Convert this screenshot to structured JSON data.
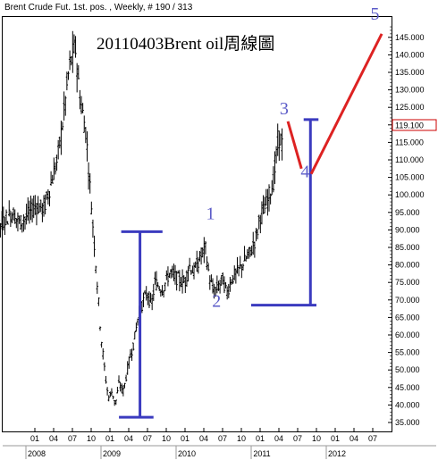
{
  "header": {
    "text": "Brent Crude Fut. 1st. pos. , Weekly, # 190 / 313"
  },
  "chart_data": {
    "type": "ohlc-bar",
    "title": "20110403Brent oil周線圖",
    "instrument": "Brent Crude Fut. 1st. pos.",
    "interval": "Weekly",
    "bar_position": "# 190 / 313",
    "last_price": "119.100",
    "ylim": [
      35,
      150
    ],
    "y_ticks": [
      "35.000",
      "40.000",
      "45.000",
      "50.000",
      "55.000",
      "60.000",
      "65.000",
      "70.000",
      "75.000",
      "80.000",
      "85.000",
      "90.000",
      "95.000",
      "100.000",
      "105.000",
      "110.000",
      "115.000",
      "120.000",
      "125.000",
      "130.000",
      "135.000",
      "140.000",
      "145.000"
    ],
    "x_ticks": [
      "10",
      "01",
      "04",
      "07",
      "10",
      "01",
      "04",
      "07",
      "10",
      "01",
      "04",
      "07",
      "10",
      "01",
      "04",
      "07",
      "10",
      "01",
      "04",
      "07"
    ],
    "x_ticks_t": [
      -0.75,
      0,
      0.25,
      0.5,
      0.75,
      1,
      1.25,
      1.5,
      1.75,
      2,
      2.25,
      2.5,
      2.75,
      3,
      3.25,
      3.5,
      3.75,
      4,
      4.25,
      4.5
    ],
    "years": [
      {
        "label": "2008",
        "t": 0
      },
      {
        "label": "2009",
        "t": 1
      },
      {
        "label": "2010",
        "t": 2
      },
      {
        "label": "2011",
        "t": 3
      },
      {
        "label": "2012",
        "t": 4
      }
    ],
    "x_range": [
      -1.0,
      4.6
    ],
    "price_anchors": [
      [
        -0.9,
        68
      ],
      [
        -0.8,
        80
      ],
      [
        -0.7,
        86
      ],
      [
        -0.6,
        92
      ],
      [
        -0.5,
        90
      ],
      [
        -0.4,
        93
      ],
      [
        -0.3,
        95
      ],
      [
        -0.2,
        92
      ],
      [
        -0.1,
        94
      ],
      [
        0,
        97
      ],
      [
        0.12,
        96
      ],
      [
        0.2,
        102
      ],
      [
        0.3,
        110
      ],
      [
        0.38,
        122
      ],
      [
        0.45,
        135
      ],
      [
        0.5,
        140
      ],
      [
        0.54,
        142
      ],
      [
        0.6,
        128
      ],
      [
        0.68,
        118
      ],
      [
        0.75,
        98
      ],
      [
        0.82,
        78
      ],
      [
        0.88,
        60
      ],
      [
        0.94,
        48
      ],
      [
        0.98,
        42
      ],
      [
        1.03,
        44
      ],
      [
        1.07,
        40
      ],
      [
        1.12,
        46
      ],
      [
        1.18,
        44
      ],
      [
        1.25,
        52
      ],
      [
        1.32,
        58
      ],
      [
        1.38,
        66
      ],
      [
        1.45,
        70
      ],
      [
        1.5,
        72
      ],
      [
        1.55,
        68
      ],
      [
        1.6,
        75
      ],
      [
        1.7,
        73
      ],
      [
        1.8,
        78
      ],
      [
        1.9,
        76
      ],
      [
        2.0,
        75
      ],
      [
        2.05,
        80
      ],
      [
        2.12,
        78
      ],
      [
        2.2,
        82
      ],
      [
        2.27,
        85
      ],
      [
        2.32,
        77
      ],
      [
        2.38,
        72
      ],
      [
        2.45,
        74
      ],
      [
        2.5,
        76
      ],
      [
        2.56,
        72
      ],
      [
        2.62,
        76
      ],
      [
        2.7,
        78
      ],
      [
        2.76,
        80
      ],
      [
        2.82,
        82
      ],
      [
        2.88,
        84
      ],
      [
        2.95,
        88
      ],
      [
        3.0,
        94
      ],
      [
        3.06,
        96
      ],
      [
        3.12,
        100
      ],
      [
        3.18,
        104
      ],
      [
        3.22,
        112
      ],
      [
        3.26,
        117
      ],
      [
        3.29,
        114
      ],
      [
        3.31,
        118
      ]
    ],
    "annotations": {
      "wave_labels": [
        {
          "label": "1",
          "t": 2.34,
          "y": 93
        },
        {
          "label": "2",
          "t": 2.42,
          "y": 68
        },
        {
          "label": "3",
          "t": 3.32,
          "y": 123
        },
        {
          "label": "4",
          "t": 3.6,
          "y": 105
        },
        {
          "label": "5",
          "t": 4.53,
          "y": 150
        }
      ],
      "blue_bracket_1": {
        "t_left": 1.12,
        "t_right": 1.58,
        "t_stem": 1.4,
        "y_top": 89.5,
        "y_bottom": 36.5,
        "t_top_right": 1.7
      },
      "blue_bracket_2": {
        "t_left": 2.88,
        "t_right": 3.75,
        "t_stem": 3.67,
        "y_top": 121.5,
        "y_bottom": 68.5,
        "t_top_left": 3.58
      },
      "red_lines": [
        {
          "t1": 3.37,
          "y1": 121,
          "t2": 3.55,
          "y2": 107.5
        },
        {
          "t1": 3.68,
          "y1": 106,
          "t2": 4.62,
          "y2": 146
        }
      ]
    }
  },
  "colors": {
    "bars": "#000000",
    "axis": "#000000",
    "grid": "#9a9a9a",
    "blue": "#3b3bbf",
    "red": "#dd2222",
    "wave_label": "#5b5bc8",
    "last_price_box": "#cc0000"
  }
}
